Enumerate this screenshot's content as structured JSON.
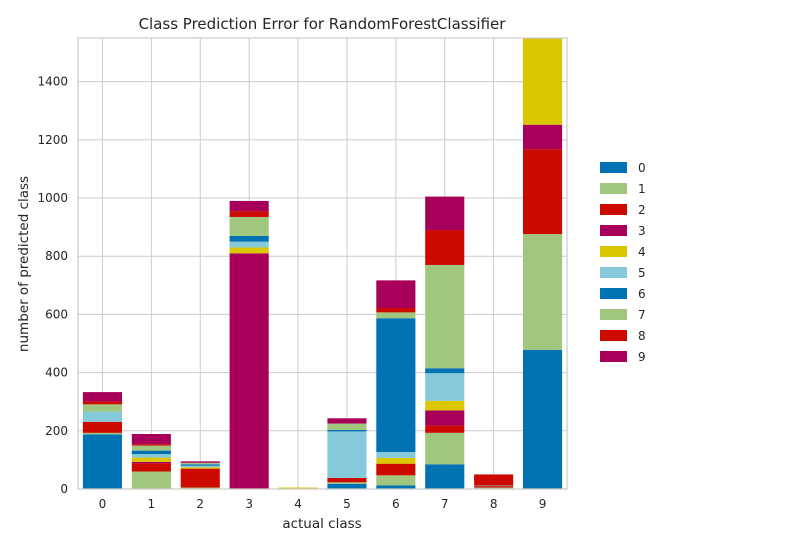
{
  "chart_data": {
    "type": "bar",
    "stacked": true,
    "title": "Class Prediction Error for RandomForestClassifier",
    "xlabel": "actual class",
    "ylabel": "number of predicted class",
    "categories": [
      "0",
      "1",
      "2",
      "3",
      "4",
      "5",
      "6",
      "7",
      "8",
      "9"
    ],
    "ylim": [
      0,
      1550
    ],
    "yticks": [
      0,
      200,
      400,
      600,
      800,
      1000,
      1200,
      1400
    ],
    "grid": true,
    "legend_position": "right",
    "series": [
      {
        "name": "0",
        "color": "#0173b2",
        "values": [
          188,
          0,
          0,
          0,
          0,
          18,
          12,
          85,
          0,
          478
        ]
      },
      {
        "name": "1",
        "color": "#a1c67e",
        "values": [
          5,
          60,
          5,
          0,
          0,
          5,
          35,
          108,
          5,
          0
        ]
      },
      {
        "name": "2",
        "color": "#cc0a00",
        "values": [
          38,
          28,
          65,
          0,
          0,
          15,
          40,
          25,
          5,
          0
        ]
      },
      {
        "name": "3",
        "color": "#a8005a",
        "values": [
          0,
          5,
          0,
          810,
          0,
          0,
          0,
          52,
          0,
          0
        ]
      },
      {
        "name": "4",
        "color": "#dbc700",
        "values": [
          0,
          15,
          5,
          20,
          5,
          0,
          20,
          33,
          0,
          0
        ]
      },
      {
        "name": "5",
        "color": "#86c9db",
        "values": [
          35,
          12,
          5,
          20,
          0,
          160,
          20,
          95,
          2,
          0
        ]
      },
      {
        "name": "6",
        "color": "#0173b2",
        "values": [
          0,
          12,
          5,
          20,
          0,
          5,
          460,
          17,
          0,
          0
        ]
      },
      {
        "name": "7",
        "color": "#a1c67e",
        "values": [
          25,
          17,
          5,
          65,
          0,
          22,
          20,
          355,
          0,
          398
        ]
      },
      {
        "name": "8",
        "color": "#cc0a00",
        "values": [
          10,
          5,
          0,
          20,
          0,
          0,
          15,
          120,
          38,
          292
        ]
      },
      {
        "name": "9",
        "color": "#a8005a",
        "values": [
          32,
          35,
          5,
          35,
          0,
          18,
          95,
          115,
          0,
          84
        ]
      },
      {
        "name": "",
        "color": "#dbc700",
        "values": [
          0,
          0,
          0,
          0,
          0,
          0,
          0,
          0,
          0,
          300
        ]
      }
    ]
  }
}
